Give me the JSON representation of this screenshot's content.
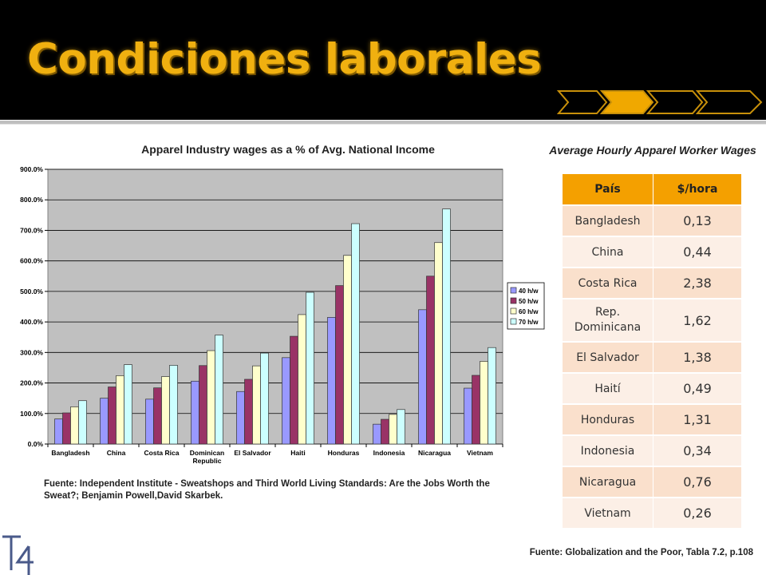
{
  "slide": {
    "title": "Condiciones laborales",
    "accent_color": "#f0b010"
  },
  "chart_data": {
    "type": "bar",
    "title": "Apparel Industry wages as a % of Avg. National Income",
    "xlabel": "",
    "ylabel": "",
    "ylim": [
      0,
      900
    ],
    "yticks": [
      "0.0%",
      "100.0%",
      "200.0%",
      "300.0%",
      "400.0%",
      "500.0%",
      "600.0%",
      "700.0%",
      "800.0%",
      "900.0%"
    ],
    "grid": true,
    "legend": "right",
    "categories": [
      "Bangladesh",
      "China",
      "Costa Rica",
      "Dominican Republic",
      "El Salvador",
      "Haiti",
      "Honduras",
      "Indonesia",
      "Nicaragua",
      "Vietnam"
    ],
    "series": [
      {
        "name": "40 h/w",
        "color": "#9999ff",
        "values": [
          82,
          150,
          147,
          206,
          172,
          283,
          415,
          65,
          440,
          183
        ]
      },
      {
        "name": "50 h/w",
        "color": "#993366",
        "values": [
          102,
          187,
          184,
          257,
          212,
          353,
          519,
          81,
          550,
          225
        ]
      },
      {
        "name": "60 h/w",
        "color": "#ffffcc",
        "values": [
          122,
          224,
          221,
          306,
          256,
          424,
          618,
          97,
          660,
          271
        ]
      },
      {
        "name": "70 h/w",
        "color": "#ccffff",
        "values": [
          142,
          260,
          258,
          357,
          298,
          497,
          722,
          113,
          770,
          316
        ]
      }
    ]
  },
  "chart_source": "Fuente: Independent Institute - Sweatshops and Third World Living Standards: Are the Jobs Worth the Sweat?; Benjamin Powell,David Skarbek.",
  "wage_table": {
    "title": "Average Hourly Apparel Worker Wages",
    "headers": [
      "País",
      "$/hora"
    ],
    "rows": [
      {
        "country": "Bangladesh",
        "wage": "0,13"
      },
      {
        "country": "China",
        "wage": "0,44"
      },
      {
        "country": "Costa Rica",
        "wage": "2,38"
      },
      {
        "country": "Rep. Dominicana",
        "wage": "1,62"
      },
      {
        "country": "El Salvador",
        "wage": "1,38"
      },
      {
        "country": "Haití",
        "wage": "0,49"
      },
      {
        "country": "Honduras",
        "wage": "1,31"
      },
      {
        "country": "Indonesia",
        "wage": "0,34"
      },
      {
        "country": "Nicaragua",
        "wage": "0,76"
      },
      {
        "country": "Vietnam",
        "wage": "0,26"
      }
    ],
    "header_color": "#f4a000"
  },
  "table_source": "Fuente: Globalization and the Poor, Tabla 7.2, p.108",
  "logo": {
    "text": "T4",
    "icon": "t4-logo-icon"
  }
}
